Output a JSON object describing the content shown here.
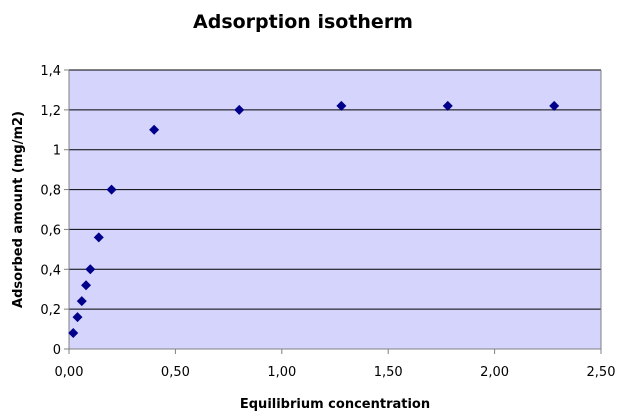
{
  "chart_data": {
    "type": "scatter",
    "title": "Adsorption isotherm",
    "xlabel": "Equilibrium concentration",
    "ylabel": "Adsorbed amount (mg/m2)",
    "xlim": [
      0,
      2.5
    ],
    "ylim": [
      0,
      1.4
    ],
    "x_ticks": [
      "0,00",
      "0,50",
      "1,00",
      "1,50",
      "2,00",
      "2,50"
    ],
    "x_tick_values": [
      0,
      0.5,
      1.0,
      1.5,
      2.0,
      2.5
    ],
    "y_ticks": [
      "0",
      "0,2",
      "0,4",
      "0,6",
      "0,8",
      "1",
      "1,2",
      "1,4"
    ],
    "y_tick_values": [
      0,
      0.2,
      0.4,
      0.6,
      0.8,
      1.0,
      1.2,
      1.4
    ],
    "grid": "horizontal",
    "legend": "none",
    "series": [
      {
        "x": [
          0.02,
          0.04,
          0.06,
          0.08,
          0.1,
          0.14,
          0.2,
          0.4,
          0.8,
          1.28,
          1.78,
          2.28
        ],
        "y": [
          0.08,
          0.16,
          0.24,
          0.32,
          0.4,
          0.56,
          0.8,
          1.1,
          1.2,
          1.22,
          1.22,
          1.22
        ]
      }
    ],
    "colors": {
      "plot_background": "#d4d4fc",
      "marker": "#00008b",
      "gridline": "#000000",
      "axis": "#808080"
    }
  }
}
